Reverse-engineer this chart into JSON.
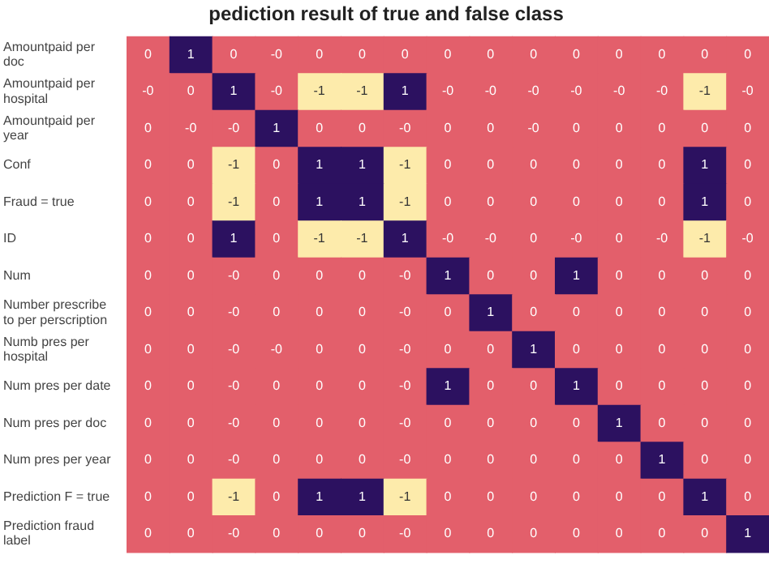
{
  "chart_data": {
    "type": "heatmap",
    "title": "pediction result of true and false class",
    "categories": [
      null,
      null,
      null,
      null,
      null,
      null,
      null,
      null,
      null,
      null,
      null,
      null,
      null,
      null,
      null
    ],
    "y_categories": [
      "Amountpaid per doc",
      "Amountpaid per hospital",
      "Amountpaid per year",
      "Conf",
      "Fraud = true",
      "ID",
      "Num",
      "Number prescribe to per perscription",
      "Numb pres per hospital",
      "Num pres per date",
      "Num pres per doc",
      "Num pres per year",
      "Prediction F = true",
      "Prediction fraud label"
    ],
    "cells": [
      [
        0,
        1,
        0,
        0,
        0,
        0,
        0,
        0,
        0,
        0,
        0,
        0,
        0,
        0,
        0
      ],
      [
        0,
        0,
        1,
        0,
        -1,
        -1,
        1,
        0,
        0,
        0,
        0,
        0,
        0,
        -1,
        0
      ],
      [
        0,
        0,
        0,
        1,
        0,
        0,
        0,
        0,
        0,
        0,
        0,
        0,
        0,
        0,
        0
      ],
      [
        0,
        0,
        -1,
        0,
        1,
        1,
        -1,
        0,
        0,
        0,
        0,
        0,
        0,
        1,
        0
      ],
      [
        0,
        0,
        -1,
        0,
        1,
        1,
        -1,
        0,
        0,
        0,
        0,
        0,
        0,
        1,
        0
      ],
      [
        0,
        0,
        1,
        0,
        -1,
        -1,
        1,
        0,
        0,
        0,
        0,
        0,
        0,
        -1,
        0
      ],
      [
        0,
        0,
        0,
        0,
        0,
        0,
        0,
        1,
        0,
        0,
        1,
        0,
        0,
        0,
        0
      ],
      [
        0,
        0,
        0,
        0,
        0,
        0,
        0,
        0,
        1,
        0,
        0,
        0,
        0,
        0,
        0
      ],
      [
        0,
        0,
        0,
        0,
        0,
        0,
        0,
        0,
        0,
        1,
        0,
        0,
        0,
        0,
        0
      ],
      [
        0,
        0,
        0,
        0,
        0,
        0,
        0,
        1,
        0,
        0,
        1,
        0,
        0,
        0,
        0
      ],
      [
        0,
        0,
        0,
        0,
        0,
        0,
        0,
        0,
        0,
        0,
        0,
        1,
        0,
        0,
        0
      ],
      [
        0,
        0,
        0,
        0,
        0,
        0,
        0,
        0,
        0,
        0,
        0,
        0,
        1,
        0,
        0
      ],
      [
        0,
        0,
        -1,
        0,
        1,
        1,
        -1,
        0,
        0,
        0,
        0,
        0,
        0,
        1,
        0
      ],
      [
        0,
        0,
        0,
        0,
        0,
        0,
        0,
        0,
        0,
        0,
        0,
        0,
        0,
        0,
        1
      ]
    ],
    "cell_labels": [
      [
        "0",
        "1",
        "0",
        "-0",
        "0",
        "0",
        "0",
        "0",
        "0",
        "0",
        "0",
        "0",
        "0",
        "0",
        "0"
      ],
      [
        "-0",
        "0",
        "1",
        "-0",
        "-1",
        "-1",
        "1",
        "-0",
        "-0",
        "-0",
        "-0",
        "-0",
        "-0",
        "-1",
        "-0"
      ],
      [
        "0",
        "-0",
        "-0",
        "1",
        "0",
        "0",
        "-0",
        "0",
        "0",
        "-0",
        "0",
        "0",
        "0",
        "0",
        "0"
      ],
      [
        "0",
        "0",
        "-1",
        "0",
        "1",
        "1",
        "-1",
        "0",
        "0",
        "0",
        "0",
        "0",
        "0",
        "1",
        "0"
      ],
      [
        "0",
        "0",
        "-1",
        "0",
        "1",
        "1",
        "-1",
        "0",
        "0",
        "0",
        "0",
        "0",
        "0",
        "1",
        "0"
      ],
      [
        "0",
        "0",
        "1",
        "0",
        "-1",
        "-1",
        "1",
        "-0",
        "-0",
        "0",
        "-0",
        "0",
        "-0",
        "-1",
        "-0"
      ],
      [
        "0",
        "0",
        "-0",
        "0",
        "0",
        "0",
        "-0",
        "1",
        "0",
        "0",
        "1",
        "0",
        "0",
        "0",
        "0"
      ],
      [
        "0",
        "0",
        "-0",
        "0",
        "0",
        "0",
        "-0",
        "0",
        "1",
        "0",
        "0",
        "0",
        "0",
        "0",
        "0"
      ],
      [
        "0",
        "0",
        "-0",
        "-0",
        "0",
        "0",
        "-0",
        "0",
        "0",
        "1",
        "0",
        "0",
        "0",
        "0",
        "0"
      ],
      [
        "0",
        "0",
        "-0",
        "0",
        "0",
        "0",
        "-0",
        "1",
        "0",
        "0",
        "1",
        "0",
        "0",
        "0",
        "0"
      ],
      [
        "0",
        "0",
        "-0",
        "0",
        "0",
        "0",
        "-0",
        "0",
        "0",
        "0",
        "0",
        "1",
        "0",
        "0",
        "0"
      ],
      [
        "0",
        "0",
        "-0",
        "0",
        "0",
        "0",
        "-0",
        "0",
        "0",
        "0",
        "0",
        "0",
        "1",
        "0",
        "0"
      ],
      [
        "0",
        "0",
        "-1",
        "0",
        "1",
        "1",
        "-1",
        "0",
        "0",
        "0",
        "0",
        "0",
        "0",
        "1",
        "0"
      ],
      [
        "0",
        "0",
        "-0",
        "0",
        "0",
        "0",
        "-0",
        "0",
        "0",
        "0",
        "0",
        "0",
        "0",
        "0",
        "1"
      ]
    ]
  }
}
